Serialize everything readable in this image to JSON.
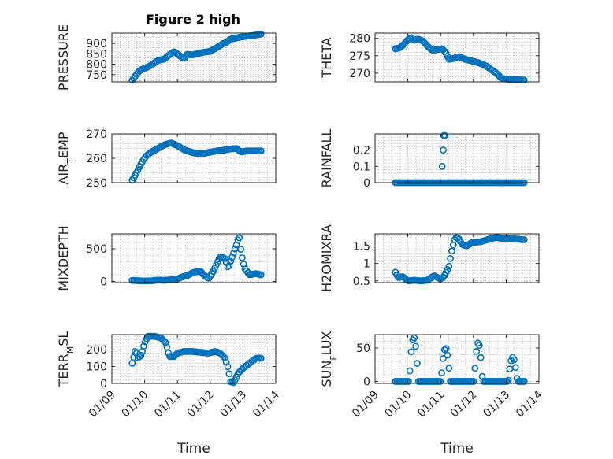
{
  "chart_data": {
    "figure_title": "Figure 2 high",
    "x_tick_labels": [
      "01/09",
      "01/10",
      "01/11",
      "01/12",
      "01/13",
      "01/14"
    ],
    "x_range_days": [
      9,
      14
    ],
    "marker_color": "#0072bd",
    "subplots": [
      {
        "id": "pressure",
        "type": "scatter",
        "ylabel": "PRESSURE",
        "ylabel_sub": "",
        "xlabel": "",
        "show_x_ticks": false,
        "ylim": [
          715,
          950
        ],
        "yticks": [
          750,
          800,
          850,
          900
        ],
        "ytick_labels": [
          "750",
          "800",
          "850",
          "900"
        ],
        "x_data_start_day": 9.62,
        "x_data_end_day": 13.55,
        "curve": [
          [
            9.62,
            723
          ],
          [
            9.72,
            745
          ],
          [
            9.85,
            770
          ],
          [
            10.0,
            780
          ],
          [
            10.2,
            795
          ],
          [
            10.4,
            818
          ],
          [
            10.6,
            825
          ],
          [
            10.75,
            845
          ],
          [
            10.9,
            860
          ],
          [
            11.1,
            838
          ],
          [
            11.2,
            826
          ],
          [
            11.3,
            848
          ],
          [
            11.45,
            845
          ],
          [
            11.6,
            850
          ],
          [
            11.8,
            858
          ],
          [
            12.0,
            862
          ],
          [
            12.2,
            880
          ],
          [
            12.4,
            900
          ],
          [
            12.5,
            905
          ],
          [
            12.6,
            920
          ],
          [
            12.75,
            925
          ],
          [
            12.9,
            930
          ],
          [
            13.1,
            935
          ],
          [
            13.3,
            938
          ],
          [
            13.55,
            945
          ]
        ]
      },
      {
        "id": "theta",
        "type": "scatter",
        "ylabel": "THETA",
        "ylabel_sub": "",
        "xlabel": "",
        "show_x_ticks": false,
        "ylim": [
          267.5,
          281.5
        ],
        "yticks": [
          270,
          275,
          280
        ],
        "ytick_labels": [
          "270",
          "275",
          "280"
        ],
        "x_data_start_day": 9.62,
        "x_data_end_day": 13.55,
        "curve": [
          [
            9.62,
            277
          ],
          [
            9.75,
            277.3
          ],
          [
            9.85,
            278
          ],
          [
            10.0,
            279.6
          ],
          [
            10.1,
            280.2
          ],
          [
            10.2,
            279.4
          ],
          [
            10.3,
            279.8
          ],
          [
            10.45,
            279.3
          ],
          [
            10.6,
            277.8
          ],
          [
            10.75,
            276.5
          ],
          [
            10.9,
            276.8
          ],
          [
            11.05,
            277
          ],
          [
            11.15,
            276
          ],
          [
            11.25,
            274
          ],
          [
            11.4,
            274.2
          ],
          [
            11.55,
            274.8
          ],
          [
            11.75,
            274
          ],
          [
            11.95,
            273.5
          ],
          [
            12.15,
            273
          ],
          [
            12.35,
            272.3
          ],
          [
            12.55,
            271
          ],
          [
            12.7,
            270
          ],
          [
            12.85,
            268.6
          ],
          [
            13.0,
            268.3
          ],
          [
            13.2,
            268.2
          ],
          [
            13.4,
            268.1
          ],
          [
            13.55,
            268
          ]
        ]
      },
      {
        "id": "air_temp",
        "type": "scatter",
        "ylabel": "AIR",
        "ylabel_sub": "T",
        "ylabel_suffix": "EMP",
        "xlabel": "",
        "show_x_ticks": false,
        "ylim": [
          250,
          270
        ],
        "yticks": [
          250,
          260,
          270
        ],
        "ytick_labels": [
          "250",
          "260",
          "270"
        ],
        "x_data_start_day": 9.62,
        "x_data_end_day": 13.55,
        "curve": [
          [
            9.62,
            251
          ],
          [
            9.75,
            254
          ],
          [
            9.9,
            258
          ],
          [
            10.05,
            261
          ],
          [
            10.2,
            262.5
          ],
          [
            10.4,
            264
          ],
          [
            10.6,
            265.5
          ],
          [
            10.8,
            266.3
          ],
          [
            11.0,
            265.2
          ],
          [
            11.2,
            263.5
          ],
          [
            11.4,
            262.6
          ],
          [
            11.6,
            261.8
          ],
          [
            11.8,
            262
          ],
          [
            12.0,
            262.5
          ],
          [
            12.2,
            263
          ],
          [
            12.4,
            263.3
          ],
          [
            12.6,
            263.8
          ],
          [
            12.8,
            264
          ],
          [
            12.95,
            262.5
          ],
          [
            13.1,
            263
          ],
          [
            13.3,
            263
          ],
          [
            13.55,
            263
          ]
        ]
      },
      {
        "id": "rainfall",
        "type": "scatter",
        "ylabel": "RAINFALL",
        "ylabel_sub": "",
        "xlabel": "",
        "show_x_ticks": false,
        "ylim": [
          0,
          0.3
        ],
        "yticks": [
          0,
          0.1,
          0.2
        ],
        "ytick_labels": [
          "0",
          "0.1",
          "0.2"
        ],
        "x_data_start_day": 9.62,
        "x_data_end_day": 13.55,
        "baseline": 0,
        "spikes": [
          [
            11.05,
            0.1
          ],
          [
            11.08,
            0.2
          ],
          [
            11.1,
            0.29
          ],
          [
            11.13,
            0.29
          ]
        ]
      },
      {
        "id": "mixdepth",
        "type": "scatter",
        "ylabel": "MIXDEPTH",
        "ylabel_sub": "",
        "xlabel": "",
        "show_x_ticks": false,
        "ylim": [
          -20,
          730
        ],
        "yticks": [
          0,
          500
        ],
        "ytick_labels": [
          "0",
          "500"
        ],
        "x_data_start_day": 9.62,
        "x_data_end_day": 13.55,
        "curve": [
          [
            9.62,
            15
          ],
          [
            9.8,
            10
          ],
          [
            10.0,
            5
          ],
          [
            10.2,
            8
          ],
          [
            10.4,
            20
          ],
          [
            10.6,
            15
          ],
          [
            10.8,
            25
          ],
          [
            11.0,
            35
          ],
          [
            11.1,
            60
          ],
          [
            11.3,
            90
          ],
          [
            11.5,
            140
          ],
          [
            11.7,
            160
          ],
          [
            11.8,
            100
          ],
          [
            11.95,
            40
          ],
          [
            12.1,
            160
          ],
          [
            12.3,
            380
          ],
          [
            12.45,
            350
          ],
          [
            12.55,
            200
          ],
          [
            12.7,
            420
          ],
          [
            12.8,
            560
          ],
          [
            12.88,
            700
          ],
          [
            12.95,
            420
          ],
          [
            13.05,
            200
          ],
          [
            13.2,
            100
          ],
          [
            13.4,
            120
          ],
          [
            13.55,
            100
          ]
        ]
      },
      {
        "id": "h2omixra",
        "type": "scatter",
        "ylabel": "H2OMIXRA",
        "ylabel_sub": "",
        "xlabel": "",
        "show_x_ticks": false,
        "ylim": [
          0.45,
          1.85
        ],
        "yticks": [
          0.5,
          1,
          1.5
        ],
        "ytick_labels": [
          "0.5",
          "1",
          "1.5"
        ],
        "x_data_start_day": 9.62,
        "x_data_end_day": 13.55,
        "curve": [
          [
            9.62,
            0.75
          ],
          [
            9.7,
            0.6
          ],
          [
            9.85,
            0.62
          ],
          [
            10.0,
            0.5
          ],
          [
            10.2,
            0.52
          ],
          [
            10.4,
            0.5
          ],
          [
            10.6,
            0.52
          ],
          [
            10.8,
            0.65
          ],
          [
            11.0,
            0.55
          ],
          [
            11.1,
            0.62
          ],
          [
            11.25,
            0.9
          ],
          [
            11.35,
            1.4
          ],
          [
            11.45,
            1.75
          ],
          [
            11.55,
            1.72
          ],
          [
            11.65,
            1.55
          ],
          [
            11.8,
            1.5
          ],
          [
            11.95,
            1.6
          ],
          [
            12.2,
            1.62
          ],
          [
            12.5,
            1.7
          ],
          [
            12.7,
            1.75
          ],
          [
            12.85,
            1.72
          ],
          [
            13.1,
            1.72
          ],
          [
            13.3,
            1.7
          ],
          [
            13.55,
            1.68
          ]
        ]
      },
      {
        "id": "terr_msl",
        "type": "scatter",
        "ylabel": "TERR",
        "ylabel_sub": "M",
        "ylabel_suffix": "SL",
        "xlabel": "Time",
        "show_x_ticks": true,
        "ylim": [
          0,
          290
        ],
        "yticks": [
          0,
          100,
          200
        ],
        "ytick_labels": [
          "0",
          "100",
          "200"
        ],
        "x_data_start_day": 9.62,
        "x_data_end_day": 13.55,
        "curve": [
          [
            9.62,
            120
          ],
          [
            9.72,
            200
          ],
          [
            9.8,
            150
          ],
          [
            9.9,
            170
          ],
          [
            10.0,
            240
          ],
          [
            10.1,
            280
          ],
          [
            10.3,
            280
          ],
          [
            10.5,
            270
          ],
          [
            10.65,
            240
          ],
          [
            10.75,
            160
          ],
          [
            10.9,
            160
          ],
          [
            11.0,
            180
          ],
          [
            11.2,
            190
          ],
          [
            11.45,
            190
          ],
          [
            11.7,
            185
          ],
          [
            11.95,
            180
          ],
          [
            12.15,
            190
          ],
          [
            12.3,
            180
          ],
          [
            12.45,
            150
          ],
          [
            12.55,
            90
          ],
          [
            12.62,
            10
          ],
          [
            12.72,
            5
          ],
          [
            12.85,
            60
          ],
          [
            13.0,
            90
          ],
          [
            13.2,
            120
          ],
          [
            13.4,
            150
          ],
          [
            13.55,
            150
          ]
        ]
      },
      {
        "id": "sun_flux",
        "type": "scatter",
        "ylabel": "SUN",
        "ylabel_sub": "F",
        "ylabel_suffix": "LUX",
        "xlabel": "Time",
        "show_x_ticks": true,
        "ylim": [
          -3,
          70
        ],
        "yticks": [
          0,
          50
        ],
        "ytick_labels": [
          "0",
          "50"
        ],
        "x_data_start_day": 9.62,
        "x_data_end_day": 13.55,
        "baseline": 0,
        "bumps": [
          [
            10.18,
            0.28,
            66
          ],
          [
            11.15,
            0.28,
            50
          ],
          [
            12.15,
            0.26,
            58
          ],
          [
            13.2,
            0.28,
            36
          ]
        ]
      }
    ]
  }
}
